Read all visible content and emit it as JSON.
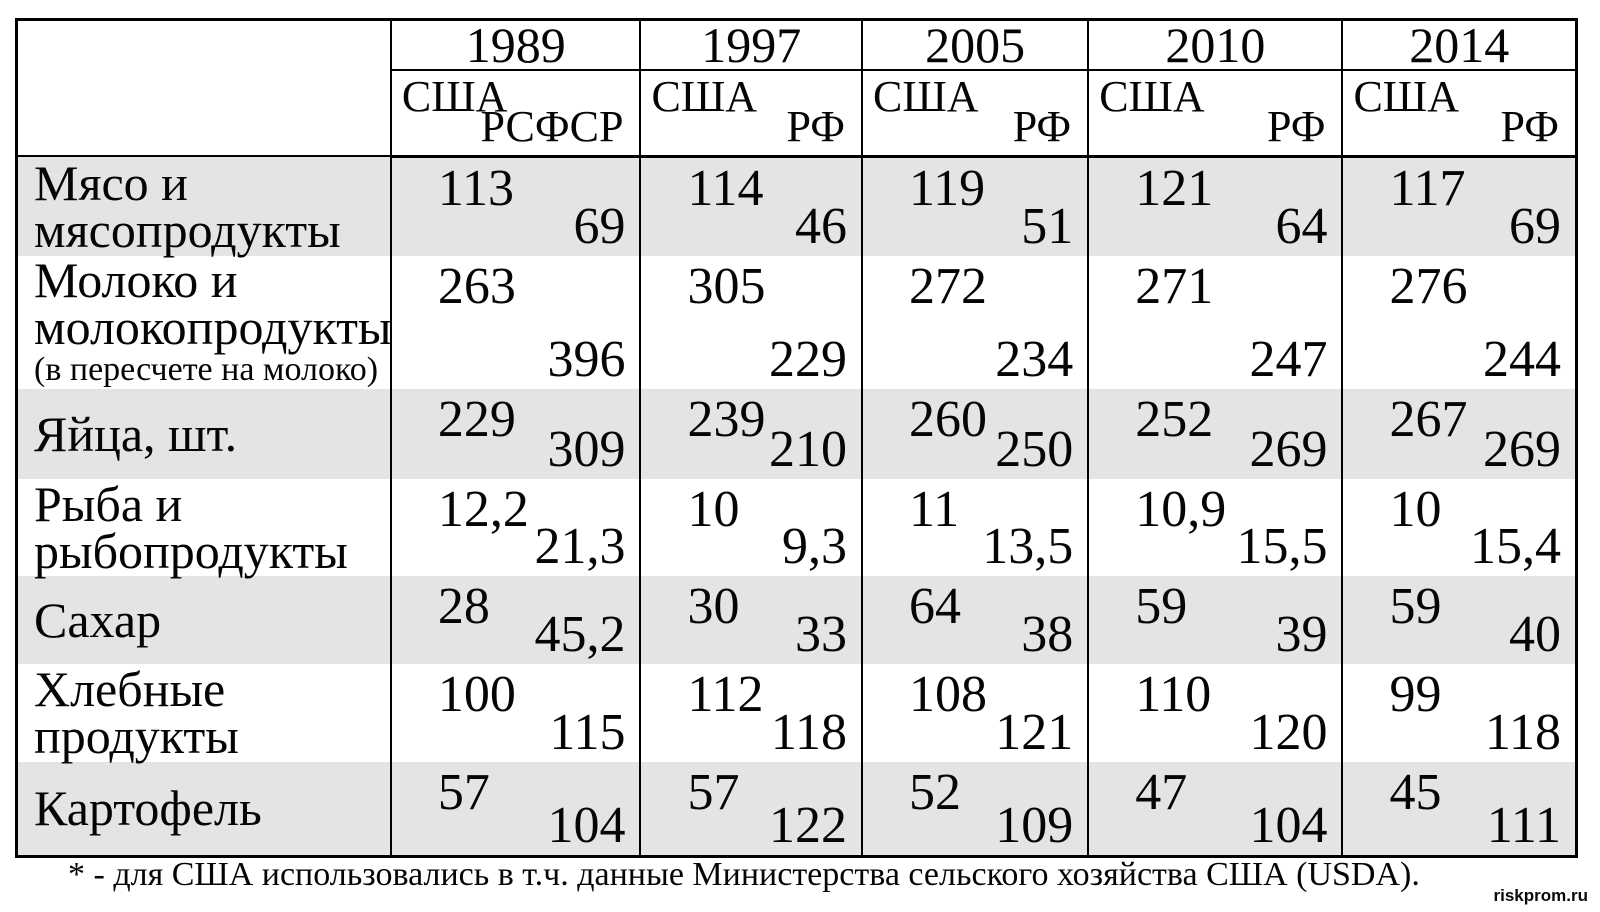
{
  "colors": {
    "row_shade": "#e4e4e4",
    "border": "#000000",
    "background": "#ffffff"
  },
  "header": {
    "years": [
      {
        "year": "1989",
        "country_left": "США",
        "country_right": "РСФСР"
      },
      {
        "year": "1997",
        "country_left": "США",
        "country_right": "РФ"
      },
      {
        "year": "2005",
        "country_left": "США",
        "country_right": "РФ"
      },
      {
        "year": "2010",
        "country_left": "США",
        "country_right": "РФ"
      },
      {
        "year": "2014",
        "country_left": "США",
        "country_right": "РФ"
      }
    ]
  },
  "rows": [
    {
      "label1": "Мясо и",
      "label2": "мясопродукты",
      "note": "",
      "values": [
        {
          "usa": "113",
          "rus": "69"
        },
        {
          "usa": "114",
          "rus": "46"
        },
        {
          "usa": "119",
          "rus": "51"
        },
        {
          "usa": "121",
          "rus": "64"
        },
        {
          "usa": "117",
          "rus": "69"
        }
      ]
    },
    {
      "label1": "Молоко и",
      "label2": "молокопродукты",
      "note": "(в пересчете на молоко)",
      "values": [
        {
          "usa": "263",
          "rus": "396"
        },
        {
          "usa": "305",
          "rus": "229"
        },
        {
          "usa": "272",
          "rus": "234"
        },
        {
          "usa": "271",
          "rus": "247"
        },
        {
          "usa": "276",
          "rus": "244"
        }
      ]
    },
    {
      "label1": "Яйца, шт.",
      "label2": "",
      "note": "",
      "values": [
        {
          "usa": "229",
          "rus": "309"
        },
        {
          "usa": "239",
          "rus": "210"
        },
        {
          "usa": "260",
          "rus": "250"
        },
        {
          "usa": "252",
          "rus": "269"
        },
        {
          "usa": "267",
          "rus": "269"
        }
      ]
    },
    {
      "label1": "Рыба и",
      "label2": "рыбопродукты",
      "note": "",
      "values": [
        {
          "usa": "12,2",
          "rus": "21,3"
        },
        {
          "usa": "10",
          "rus": "9,3"
        },
        {
          "usa": "11",
          "rus": "13,5"
        },
        {
          "usa": "10,9",
          "rus": "15,5"
        },
        {
          "usa": "10",
          "rus": "15,4"
        }
      ]
    },
    {
      "label1": "Сахар",
      "label2": "",
      "note": "",
      "values": [
        {
          "usa": "28",
          "rus": "45,2"
        },
        {
          "usa": "30",
          "rus": "33"
        },
        {
          "usa": "64",
          "rus": "38"
        },
        {
          "usa": "59",
          "rus": "39"
        },
        {
          "usa": "59",
          "rus": "40"
        }
      ]
    },
    {
      "label1": "Хлебные",
      "label2": "продукты",
      "note": "",
      "values": [
        {
          "usa": "100",
          "rus": "115"
        },
        {
          "usa": "112",
          "rus": "118"
        },
        {
          "usa": "108",
          "rus": "121"
        },
        {
          "usa": "110",
          "rus": "120"
        },
        {
          "usa": "99",
          "rus": "118"
        }
      ]
    },
    {
      "label1": "Картофель",
      "label2": "",
      "note": "",
      "values": [
        {
          "usa": "57",
          "rus": "104"
        },
        {
          "usa": "57",
          "rus": "122"
        },
        {
          "usa": "52",
          "rus": "109"
        },
        {
          "usa": "47",
          "rus": "104"
        },
        {
          "usa": "45",
          "rus": "111"
        }
      ]
    }
  ],
  "footnote": "* - для США использовались в т.ч. данные Министерства сельского хозяйства США (USDA).",
  "watermark": "riskprom.ru"
}
